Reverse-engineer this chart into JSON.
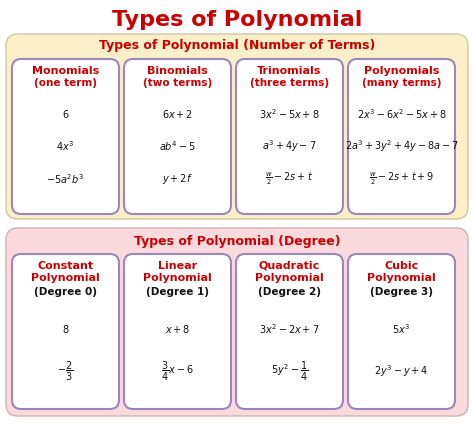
{
  "title": "Types of Polynomial",
  "title_color": "#cc0000",
  "bg_color": "#ffffff",
  "section1_bg": "#faefc8",
  "section2_bg": "#fadadd",
  "section1_title": "Types of Polynomial (Number of Terms)",
  "section2_title": "Types of Polynomial (Degree)",
  "section_title_color": "#cc0000",
  "card_border_color": "#9988bb",
  "top_cards": [
    {
      "header1": "Monomials",
      "header2": "(one term)",
      "examples": [
        "$6$",
        "$4x^3$",
        "$-5a^2b^3$"
      ]
    },
    {
      "header1": "Binomials",
      "header2": "(two terms)",
      "examples": [
        "$6x+2$",
        "$ab^4-5$",
        "$y+2f$"
      ]
    },
    {
      "header1": "Trinomials",
      "header2": "(three terms)",
      "examples": [
        "$3x^2-5x+8$",
        "$a^3+4y-7$",
        "$\\frac{w}{2}-2s+t$"
      ]
    },
    {
      "header1": "Polynomials",
      "header2": "(many terms)",
      "examples": [
        "$2x^3-6x^2-5x+8$",
        "$2a^3+3y^2+4y-8a-7$",
        "$\\frac{w}{2}-2s+t+9$"
      ]
    }
  ],
  "bottom_cards": [
    {
      "header1": "Constant",
      "header2": "Polynomial",
      "header3": "(Degree 0)",
      "examples": [
        "$8$",
        "$-\\dfrac{2}{3}$"
      ]
    },
    {
      "header1": "Linear",
      "header2": "Polynomial",
      "header3": "(Degree 1)",
      "examples": [
        "$x+8$",
        "$\\dfrac{3}{4}x-6$"
      ]
    },
    {
      "header1": "Quadratic",
      "header2": "Polynomial",
      "header3": "(Degree 2)",
      "examples": [
        "$3x^2-2x+7$",
        "$5y^2-\\dfrac{1}{4}$"
      ]
    },
    {
      "header1": "Cubic",
      "header2": "Polynomial",
      "header3": "(Degree 3)",
      "examples": [
        "$5x^3$",
        "$2y^3-y+4$"
      ]
    }
  ]
}
